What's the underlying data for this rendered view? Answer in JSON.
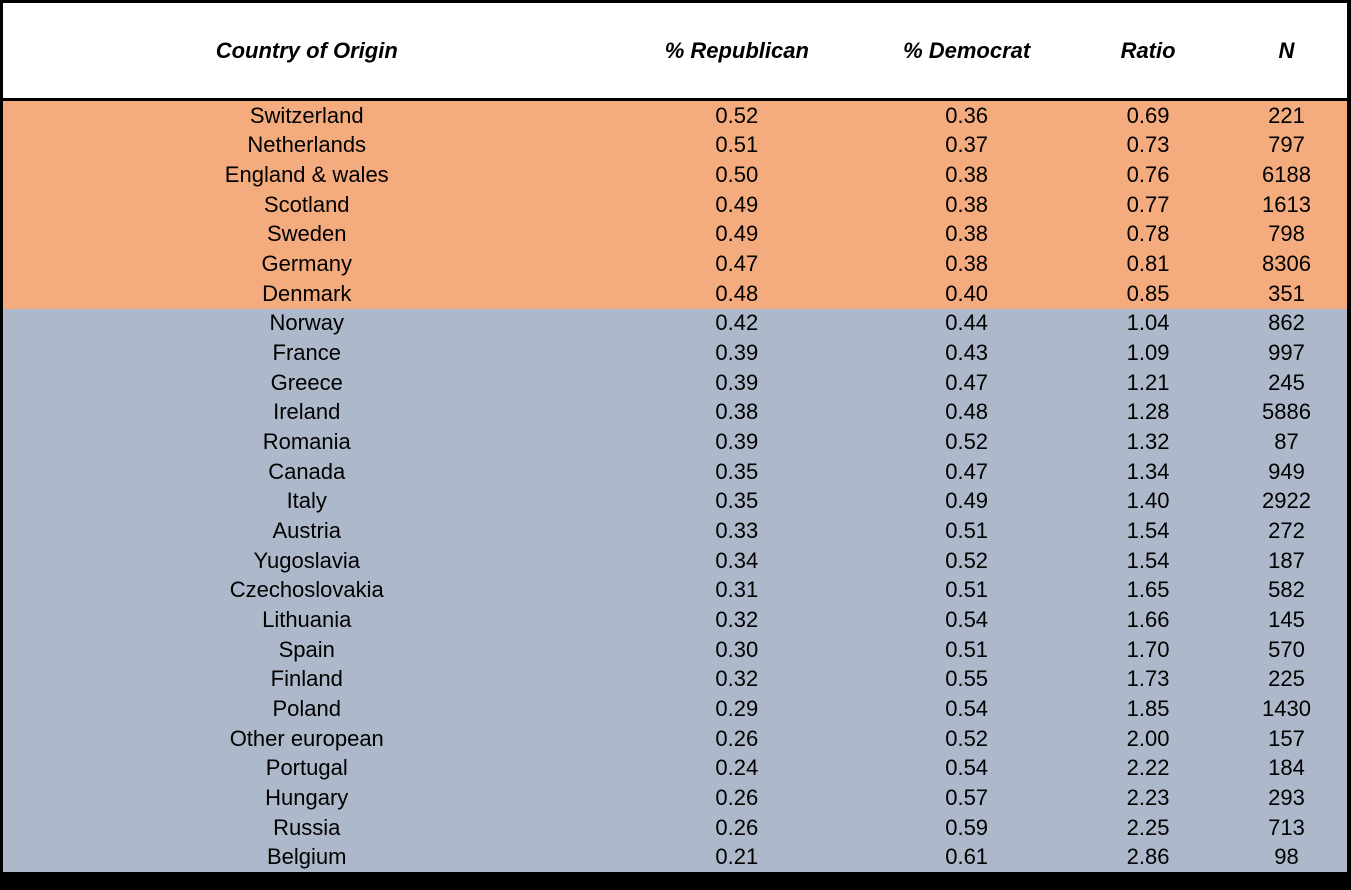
{
  "chart_data": {
    "type": "table",
    "columns": [
      "Country of Origin",
      "% Republican",
      "% Democrat",
      "Ratio",
      "N"
    ],
    "sections": [
      {
        "name": "republican-majority-group",
        "fill_color": "#F4AC7E",
        "rows": [
          [
            "Switzerland",
            "0.52",
            "0.36",
            "0.69",
            "221"
          ],
          [
            "Netherlands",
            "0.51",
            "0.37",
            "0.73",
            "797"
          ],
          [
            "England & wales",
            "0.50",
            "0.38",
            "0.76",
            "6188"
          ],
          [
            "Scotland",
            "0.49",
            "0.38",
            "0.77",
            "1613"
          ],
          [
            "Sweden",
            "0.49",
            "0.38",
            "0.78",
            "798"
          ],
          [
            "Germany",
            "0.47",
            "0.38",
            "0.81",
            "8306"
          ],
          [
            "Denmark",
            "0.48",
            "0.40",
            "0.85",
            "351"
          ]
        ]
      },
      {
        "name": "democrat-majority-group",
        "fill_color": "#ADB9CA",
        "rows": [
          [
            "Norway",
            "0.42",
            "0.44",
            "1.04",
            "862"
          ],
          [
            "France",
            "0.39",
            "0.43",
            "1.09",
            "997"
          ],
          [
            "Greece",
            "0.39",
            "0.47",
            "1.21",
            "245"
          ],
          [
            "Ireland",
            "0.38",
            "0.48",
            "1.28",
            "5886"
          ],
          [
            "Romania",
            "0.39",
            "0.52",
            "1.32",
            "87"
          ],
          [
            "Canada",
            "0.35",
            "0.47",
            "1.34",
            "949"
          ],
          [
            "Italy",
            "0.35",
            "0.49",
            "1.40",
            "2922"
          ],
          [
            "Austria",
            "0.33",
            "0.51",
            "1.54",
            "272"
          ],
          [
            "Yugoslavia",
            "0.34",
            "0.52",
            "1.54",
            "187"
          ],
          [
            "Czechoslovakia",
            "0.31",
            "0.51",
            "1.65",
            "582"
          ],
          [
            "Lithuania",
            "0.32",
            "0.54",
            "1.66",
            "145"
          ],
          [
            "Spain",
            "0.30",
            "0.51",
            "1.70",
            "570"
          ],
          [
            "Finland",
            "0.32",
            "0.55",
            "1.73",
            "225"
          ],
          [
            "Poland",
            "0.29",
            "0.54",
            "1.85",
            "1430"
          ],
          [
            "Other european",
            "0.26",
            "0.52",
            "2.00",
            "157"
          ],
          [
            "Portugal",
            "0.24",
            "0.54",
            "2.22",
            "184"
          ],
          [
            "Hungary",
            "0.26",
            "0.57",
            "2.23",
            "293"
          ],
          [
            "Russia",
            "0.26",
            "0.59",
            "2.25",
            "713"
          ],
          [
            "Belgium",
            "0.21",
            "0.61",
            "2.86",
            "98"
          ]
        ]
      }
    ],
    "layout": {
      "header_background": "#FFFFFF",
      "border_color": "#000000",
      "text_color": "#000000"
    }
  }
}
